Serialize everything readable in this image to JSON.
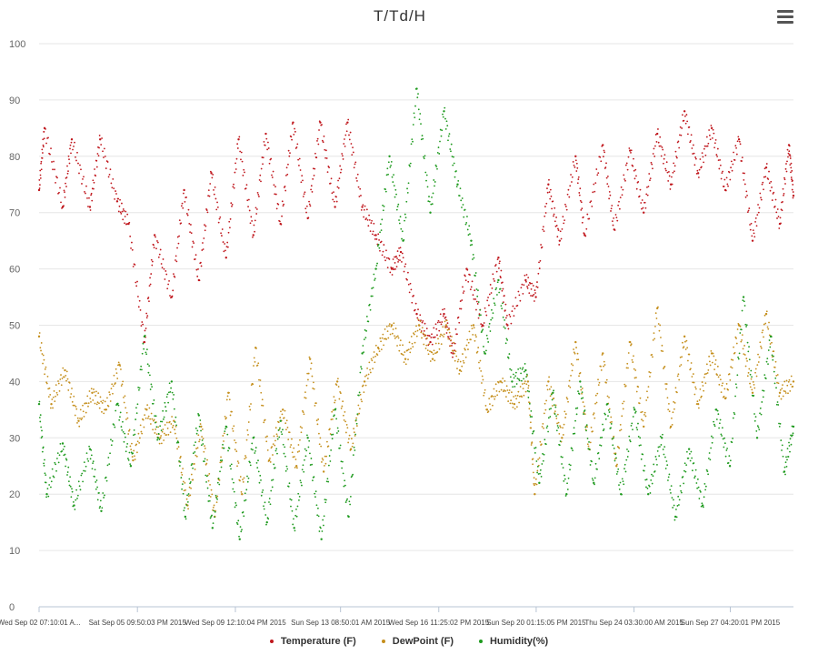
{
  "chart_data": {
    "type": "scatter",
    "title": "T/Td/H",
    "xlabel": "",
    "ylabel": "",
    "ylim": [
      0,
      100
    ],
    "yticks": [
      0,
      10,
      20,
      30,
      40,
      50,
      60,
      70,
      80,
      90,
      100
    ],
    "grid": true,
    "legend_position": "bottom-center",
    "x_range": [
      "2015-09-02 07:10",
      "2015-09-30 00:00"
    ],
    "x_tick_labels": [
      {
        "t": "2015-09-02 07:10",
        "label": "Wed Sep 02 07:10:01 A..."
      },
      {
        "t": "2015-09-05 21:50",
        "label": "Sat Sep 05 09:50:03 PM 2015"
      },
      {
        "t": "2015-09-09 12:10",
        "label": "Wed Sep 09 12:10:04 PM 2015"
      },
      {
        "t": "2015-09-13 08:50",
        "label": "Sun Sep 13 08:50:01 AM 2015"
      },
      {
        "t": "2015-09-16 23:25",
        "label": "Wed Sep 16 11:25:02 PM 2015"
      },
      {
        "t": "2015-09-20 13:15",
        "label": "Sun Sep 20 01:15:05 PM 2015"
      },
      {
        "t": "2015-09-24 03:30",
        "label": "Thu Sep 24 03:30:00 AM 2015"
      },
      {
        "t": "2015-09-27 16:20",
        "label": "Sun Sep 27 04:20:01 PM 2015"
      }
    ],
    "series": [
      {
        "name": "Temperature (F)",
        "color": "#c0171d",
        "points": [
          [
            "2015-09-02 07:10",
            74
          ],
          [
            "2015-09-02 12:00",
            85
          ],
          [
            "2015-09-03 04:00",
            71
          ],
          [
            "2015-09-03 12:00",
            83
          ],
          [
            "2015-09-04 04:00",
            71
          ],
          [
            "2015-09-04 13:00",
            83
          ],
          [
            "2015-09-05 04:00",
            72
          ],
          [
            "2015-09-05 14:00",
            68
          ],
          [
            "2015-09-06 04:00",
            47
          ],
          [
            "2015-09-06 13:00",
            66
          ],
          [
            "2015-09-07 04:00",
            55
          ],
          [
            "2015-09-07 15:00",
            74
          ],
          [
            "2015-09-08 04:00",
            58
          ],
          [
            "2015-09-08 15:00",
            77
          ],
          [
            "2015-09-09 04:00",
            62
          ],
          [
            "2015-09-09 15:00",
            83
          ],
          [
            "2015-09-10 04:00",
            66
          ],
          [
            "2015-09-10 15:00",
            84
          ],
          [
            "2015-09-11 04:00",
            68
          ],
          [
            "2015-09-11 15:00",
            86
          ],
          [
            "2015-09-12 04:00",
            69
          ],
          [
            "2015-09-12 15:00",
            86
          ],
          [
            "2015-09-13 04:00",
            71
          ],
          [
            "2015-09-13 15:00",
            86
          ],
          [
            "2015-09-14 04:00",
            71
          ],
          [
            "2015-09-14 16:00",
            66
          ],
          [
            "2015-09-15 06:00",
            60
          ],
          [
            "2015-09-15 14:00",
            63
          ],
          [
            "2015-09-16 04:00",
            52
          ],
          [
            "2015-09-16 16:00",
            47
          ],
          [
            "2015-09-17 04:00",
            52
          ],
          [
            "2015-09-17 12:00",
            45
          ],
          [
            "2015-09-18 00:00",
            60
          ],
          [
            "2015-09-18 14:00",
            50
          ],
          [
            "2015-09-19 04:00",
            62
          ],
          [
            "2015-09-19 12:00",
            50
          ],
          [
            "2015-09-20 04:00",
            58
          ],
          [
            "2015-09-20 13:00",
            55
          ],
          [
            "2015-09-21 00:00",
            75
          ],
          [
            "2015-09-21 10:00",
            65
          ],
          [
            "2015-09-22 00:00",
            80
          ],
          [
            "2015-09-22 08:00",
            66
          ],
          [
            "2015-09-23 00:00",
            82
          ],
          [
            "2015-09-23 10:00",
            67
          ],
          [
            "2015-09-24 00:00",
            81
          ],
          [
            "2015-09-24 12:00",
            70
          ],
          [
            "2015-09-25 00:00",
            84
          ],
          [
            "2015-09-25 12:00",
            75
          ],
          [
            "2015-09-26 00:00",
            88
          ],
          [
            "2015-09-26 12:00",
            77
          ],
          [
            "2015-09-27 00:00",
            85
          ],
          [
            "2015-09-27 12:00",
            74
          ],
          [
            "2015-09-28 00:00",
            83
          ],
          [
            "2015-09-28 12:00",
            65
          ],
          [
            "2015-09-29 00:00",
            78
          ],
          [
            "2015-09-29 12:00",
            68
          ],
          [
            "2015-09-29 20:00",
            82
          ],
          [
            "2015-09-30 00:00",
            73
          ]
        ]
      },
      {
        "name": "DewPoint (F)",
        "color": "#c58f1c",
        "points": [
          [
            "2015-09-02 07:10",
            48
          ],
          [
            "2015-09-02 18:00",
            36
          ],
          [
            "2015-09-03 06:00",
            42
          ],
          [
            "2015-09-03 18:00",
            33
          ],
          [
            "2015-09-04 06:00",
            38
          ],
          [
            "2015-09-04 18:00",
            35
          ],
          [
            "2015-09-05 06:00",
            43
          ],
          [
            "2015-09-05 18:00",
            26
          ],
          [
            "2015-09-06 06:00",
            35
          ],
          [
            "2015-09-06 18:00",
            30
          ],
          [
            "2015-09-07 06:00",
            33
          ],
          [
            "2015-09-07 18:00",
            18
          ],
          [
            "2015-09-08 06:00",
            32
          ],
          [
            "2015-09-08 18:00",
            16
          ],
          [
            "2015-09-09 06:00",
            38
          ],
          [
            "2015-09-09 18:00",
            20
          ],
          [
            "2015-09-10 06:00",
            46
          ],
          [
            "2015-09-10 18:00",
            26
          ],
          [
            "2015-09-11 06:00",
            35
          ],
          [
            "2015-09-11 18:00",
            25
          ],
          [
            "2015-09-12 06:00",
            44
          ],
          [
            "2015-09-12 18:00",
            24
          ],
          [
            "2015-09-13 06:00",
            40
          ],
          [
            "2015-09-13 18:00",
            28
          ],
          [
            "2015-09-14 06:00",
            40
          ],
          [
            "2015-09-14 18:00",
            46
          ],
          [
            "2015-09-15 06:00",
            50
          ],
          [
            "2015-09-15 18:00",
            44
          ],
          [
            "2015-09-16 06:00",
            50
          ],
          [
            "2015-09-16 18:00",
            44
          ],
          [
            "2015-09-17 06:00",
            50
          ],
          [
            "2015-09-17 18:00",
            42
          ],
          [
            "2015-09-18 06:00",
            50
          ],
          [
            "2015-09-18 18:00",
            35
          ],
          [
            "2015-09-19 06:00",
            40
          ],
          [
            "2015-09-19 18:00",
            36
          ],
          [
            "2015-09-20 06:00",
            40
          ],
          [
            "2015-09-20 12:00",
            20
          ],
          [
            "2015-09-21 00:00",
            40
          ],
          [
            "2015-09-21 12:00",
            30
          ],
          [
            "2015-09-22 00:00",
            47
          ],
          [
            "2015-09-22 12:00",
            28
          ],
          [
            "2015-09-23 00:00",
            45
          ],
          [
            "2015-09-23 12:00",
            25
          ],
          [
            "2015-09-24 00:00",
            47
          ],
          [
            "2015-09-24 12:00",
            32
          ],
          [
            "2015-09-25 00:00",
            53
          ],
          [
            "2015-09-25 12:00",
            32
          ],
          [
            "2015-09-26 00:00",
            48
          ],
          [
            "2015-09-26 12:00",
            36
          ],
          [
            "2015-09-27 00:00",
            45
          ],
          [
            "2015-09-27 12:00",
            37
          ],
          [
            "2015-09-28 00:00",
            50
          ],
          [
            "2015-09-28 12:00",
            38
          ],
          [
            "2015-09-29 00:00",
            52
          ],
          [
            "2015-09-29 12:00",
            38
          ],
          [
            "2015-09-30 00:00",
            40
          ]
        ]
      },
      {
        "name": "Humidity(%)",
        "color": "#1e9a1e",
        "points": [
          [
            "2015-09-02 07:10",
            36
          ],
          [
            "2015-09-02 14:00",
            20
          ],
          [
            "2015-09-03 04:00",
            29
          ],
          [
            "2015-09-03 14:00",
            18
          ],
          [
            "2015-09-04 04:00",
            28
          ],
          [
            "2015-09-04 14:00",
            17
          ],
          [
            "2015-09-05 04:00",
            36
          ],
          [
            "2015-09-05 16:00",
            25
          ],
          [
            "2015-09-06 04:00",
            48
          ],
          [
            "2015-09-06 16:00",
            30
          ],
          [
            "2015-09-07 04:00",
            40
          ],
          [
            "2015-09-07 16:00",
            16
          ],
          [
            "2015-09-08 04:00",
            34
          ],
          [
            "2015-09-08 16:00",
            14
          ],
          [
            "2015-09-09 04:00",
            32
          ],
          [
            "2015-09-09 16:00",
            12
          ],
          [
            "2015-09-10 04:00",
            30
          ],
          [
            "2015-09-10 16:00",
            15
          ],
          [
            "2015-09-11 04:00",
            33
          ],
          [
            "2015-09-11 16:00",
            14
          ],
          [
            "2015-09-12 04:00",
            30
          ],
          [
            "2015-09-12 16:00",
            12
          ],
          [
            "2015-09-13 04:00",
            35
          ],
          [
            "2015-09-13 16:00",
            16
          ],
          [
            "2015-09-14 04:00",
            45
          ],
          [
            "2015-09-14 16:00",
            60
          ],
          [
            "2015-09-15 04:00",
            80
          ],
          [
            "2015-09-15 16:00",
            65
          ],
          [
            "2015-09-16 04:00",
            92
          ],
          [
            "2015-09-16 16:00",
            70
          ],
          [
            "2015-09-17 04:00",
            88
          ],
          [
            "2015-09-17 16:00",
            75
          ],
          [
            "2015-09-18 04:00",
            65
          ],
          [
            "2015-09-18 16:00",
            45
          ],
          [
            "2015-09-19 04:00",
            58
          ],
          [
            "2015-09-19 16:00",
            40
          ],
          [
            "2015-09-20 04:00",
            42
          ],
          [
            "2015-09-20 16:00",
            22
          ],
          [
            "2015-09-21 04:00",
            38
          ],
          [
            "2015-09-21 16:00",
            20
          ],
          [
            "2015-09-22 04:00",
            40
          ],
          [
            "2015-09-22 16:00",
            22
          ],
          [
            "2015-09-23 04:00",
            36
          ],
          [
            "2015-09-23 16:00",
            20
          ],
          [
            "2015-09-24 04:00",
            35
          ],
          [
            "2015-09-24 16:00",
            20
          ],
          [
            "2015-09-25 04:00",
            30
          ],
          [
            "2015-09-25 16:00",
            16
          ],
          [
            "2015-09-26 04:00",
            28
          ],
          [
            "2015-09-26 16:00",
            18
          ],
          [
            "2015-09-27 04:00",
            35
          ],
          [
            "2015-09-27 16:00",
            25
          ],
          [
            "2015-09-28 04:00",
            55
          ],
          [
            "2015-09-28 16:00",
            30
          ],
          [
            "2015-09-29 04:00",
            48
          ],
          [
            "2015-09-29 16:00",
            24
          ],
          [
            "2015-09-30 00:00",
            32
          ]
        ]
      }
    ]
  },
  "menu": {
    "icon": "hamburger-menu-icon"
  }
}
